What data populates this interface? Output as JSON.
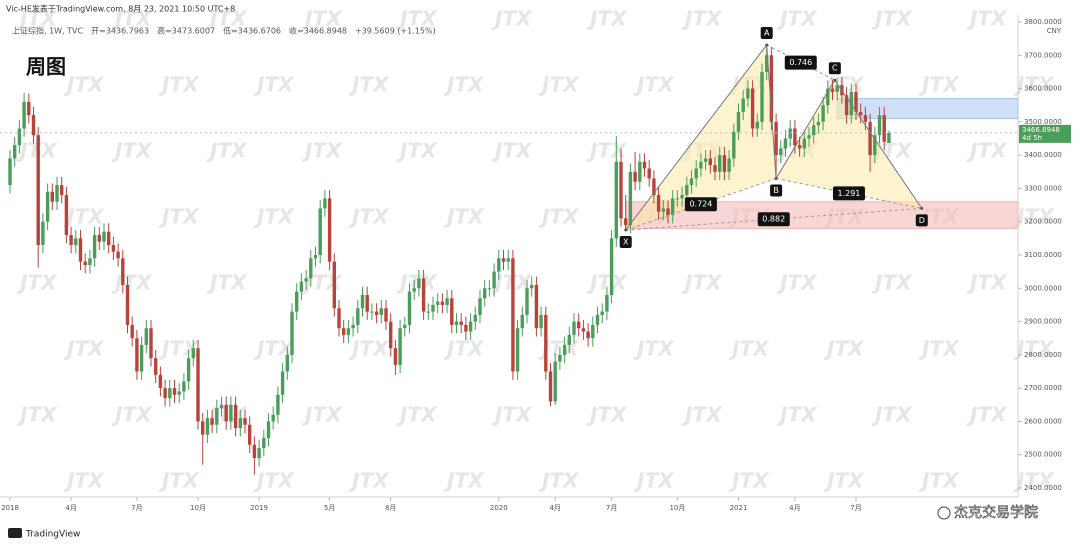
{
  "header": {
    "source": "Vic-HE发表于TradingView.com, 8月 23, 2021 10:50 UTC+8",
    "symbol": "上证综指, 1W, TVC",
    "fields": [
      "开=3436.7963",
      "高=3473.6007",
      "低=3436.6706",
      "收=3466.8948",
      "+39.5609 (+1.15%)"
    ],
    "period_label": "周图",
    "currency": "CNY",
    "brand": "TradingView",
    "credit": "杰克交易学院",
    "watermark": "JTX"
  },
  "chart_data": {
    "type": "candlestick",
    "up_color": "#4a9d5b",
    "down_color": "#b8433a",
    "ylim": [
      2379,
      3821
    ],
    "yticks": [
      {
        "value": 2400,
        "label": "2400.0000"
      },
      {
        "value": 2500,
        "label": "2500.0000"
      },
      {
        "value": 2600,
        "label": "2600.0000"
      },
      {
        "value": 2700,
        "label": "2700.0000"
      },
      {
        "value": 2800,
        "label": "2800.0000"
      },
      {
        "value": 2900,
        "label": "2900.0000"
      },
      {
        "value": 3000,
        "label": "3000.0000"
      },
      {
        "value": 3100,
        "label": "3100.0000"
      },
      {
        "value": 3200,
        "label": "3200.0000"
      },
      {
        "value": 3300,
        "label": "3300.0000"
      },
      {
        "value": 3400,
        "label": "3400.0000"
      },
      {
        "value": 3500,
        "label": "3500.0000"
      },
      {
        "value": 3600,
        "label": "3600.0000"
      },
      {
        "value": 3700,
        "label": "3700.0000"
      },
      {
        "value": 3800,
        "label": "3800.0000"
      }
    ],
    "categories": [
      "2018",
      null,
      null,
      null,
      null,
      null,
      null,
      null,
      null,
      null,
      null,
      null,
      null,
      "4月",
      null,
      null,
      null,
      null,
      null,
      null,
      null,
      null,
      null,
      null,
      null,
      null,
      null,
      "7月",
      null,
      null,
      null,
      null,
      null,
      null,
      null,
      null,
      null,
      null,
      null,
      null,
      "10月",
      null,
      null,
      null,
      null,
      null,
      null,
      null,
      null,
      null,
      null,
      null,
      null,
      "2019",
      null,
      null,
      null,
      null,
      null,
      null,
      null,
      null,
      null,
      null,
      null,
      null,
      null,
      null,
      "5月",
      null,
      null,
      null,
      null,
      null,
      null,
      null,
      null,
      null,
      null,
      null,
      null,
      "8月",
      null,
      null,
      null,
      null,
      null,
      null,
      null,
      null,
      null,
      null,
      null,
      null,
      null,
      null,
      null,
      null,
      null,
      null,
      null,
      null,
      null,
      null,
      "2020",
      null,
      null,
      null,
      null,
      null,
      null,
      null,
      null,
      null,
      null,
      null,
      "4月",
      null,
      null,
      null,
      null,
      null,
      null,
      null,
      null,
      null,
      null,
      null,
      "7月",
      null,
      null,
      null,
      null,
      null,
      null,
      null,
      null,
      null,
      null,
      null,
      null,
      null,
      "10月",
      null,
      null,
      null,
      null,
      null,
      null,
      null,
      null,
      null,
      null,
      null,
      null,
      "2021",
      null,
      null,
      null,
      null,
      null,
      null,
      null,
      null,
      null,
      null,
      null,
      "4月",
      null,
      null,
      null,
      null,
      null,
      null,
      null,
      null,
      null,
      null,
      null,
      null,
      "7月",
      null,
      null,
      null,
      null,
      null,
      null,
      null
    ],
    "open": [
      3310,
      3390,
      3430,
      3480,
      3560,
      3520,
      3460,
      3130,
      3200,
      3290,
      3260,
      3310,
      3280,
      3160,
      3130,
      3150,
      3080,
      3070,
      3090,
      3160,
      3140,
      3170,
      3130,
      3110,
      3090,
      3010,
      2890,
      2850,
      2750,
      2830,
      2880,
      2790,
      2740,
      2700,
      2670,
      2700,
      2680,
      2690,
      2720,
      2790,
      2820,
      2600,
      2560,
      2610,
      2590,
      2640,
      2650,
      2600,
      2650,
      2580,
      2610,
      2590,
      2530,
      2490,
      2520,
      2550,
      2600,
      2620,
      2680,
      2750,
      2800,
      2930,
      2990,
      3020,
      3030,
      3090,
      3100,
      3240,
      3270,
      3080,
      2940,
      2880,
      2860,
      2880,
      2890,
      2940,
      2980,
      2930,
      2930,
      2920,
      2940,
      2900,
      2820,
      2770,
      2880,
      2890,
      2990,
      3000,
      3030,
      2930,
      2930,
      2950,
      2960,
      2950,
      2970,
      2890,
      2900,
      2890,
      2870,
      2900,
      2920,
      2970,
      3000,
      3000,
      3050,
      3090,
      3080,
      3090,
      2750,
      2880,
      2920,
      3000,
      3010,
      2880,
      2920,
      2750,
      2660,
      2780,
      2800,
      2830,
      2860,
      2900,
      2880,
      2870,
      2850,
      2890,
      2920,
      2930,
      2980,
      3150,
      3380,
      3210,
      3190,
      3350,
      3320,
      3380,
      3360,
      3330,
      3280,
      3230,
      3240,
      3220,
      3270,
      3270,
      3280,
      3310,
      3330,
      3360,
      3380,
      3390,
      3370,
      3350,
      3400,
      3350,
      3390,
      3470,
      3530,
      3570,
      3600,
      3480,
      3500,
      3650,
      3700,
      3500,
      3400,
      3420,
      3450,
      3480,
      3430,
      3420,
      3450,
      3460,
      3490,
      3500,
      3550,
      3600,
      3590,
      3610,
      3580,
      3520,
      3590,
      3530,
      3520,
      3500,
      3400,
      3460,
      3520,
      3436.7963
    ],
    "high": [
      3415,
      3455,
      3505,
      3587,
      3585,
      3545,
      3485,
      3225,
      3315,
      3315,
      3335,
      3335,
      3305,
      3185,
      3175,
      3175,
      3105,
      3115,
      3185,
      3185,
      3195,
      3195,
      3155,
      3135,
      3115,
      3035,
      2915,
      2875,
      2855,
      2905,
      2905,
      2815,
      2765,
      2725,
      2725,
      2725,
      2715,
      2745,
      2815,
      2845,
      2845,
      2625,
      2635,
      2635,
      2665,
      2675,
      2675,
      2675,
      2675,
      2635,
      2635,
      2615,
      2555,
      2545,
      2575,
      2625,
      2645,
      2705,
      2775,
      2825,
      2955,
      3015,
      3045,
      3055,
      3115,
      3125,
      3265,
      3295,
      3295,
      3105,
      2965,
      2905,
      2905,
      2915,
      2965,
      3005,
      3005,
      2955,
      2955,
      2965,
      2965,
      2925,
      2845,
      2905,
      2915,
      3015,
      3025,
      3055,
      3055,
      2955,
      2975,
      2985,
      2985,
      2995,
      2995,
      2925,
      2925,
      2915,
      2925,
      2945,
      2995,
      3025,
      3025,
      3075,
      3115,
      3115,
      3115,
      3115,
      2905,
      2945,
      3025,
      3035,
      3035,
      2945,
      2945,
      2775,
      2805,
      2825,
      2855,
      2885,
      2925,
      2925,
      2905,
      2895,
      2915,
      2945,
      2955,
      3005,
      3175,
      3458,
      3420,
      3280,
      3375,
      3410,
      3405,
      3405,
      3385,
      3355,
      3305,
      3265,
      3265,
      3295,
      3295,
      3305,
      3335,
      3355,
      3385,
      3405,
      3415,
      3415,
      3395,
      3425,
      3425,
      3415,
      3495,
      3555,
      3595,
      3625,
      3625,
      3525,
      3675,
      3731,
      3725,
      3525,
      3445,
      3475,
      3505,
      3505,
      3455,
      3475,
      3485,
      3515,
      3525,
      3575,
      3625,
      3625,
      3630,
      3635,
      3605,
      3615,
      3615,
      3555,
      3545,
      3525,
      3485,
      3545,
      3545,
      3473.6007
    ],
    "low": [
      3285,
      3365,
      3405,
      3455,
      3495,
      3435,
      3062,
      3105,
      3175,
      3235,
      3235,
      3255,
      3135,
      3105,
      3105,
      3055,
      3045,
      3045,
      3065,
      3115,
      3115,
      3105,
      3085,
      3065,
      2985,
      2865,
      2825,
      2725,
      2725,
      2805,
      2765,
      2715,
      2675,
      2645,
      2645,
      2655,
      2655,
      2665,
      2695,
      2765,
      2575,
      2470,
      2535,
      2565,
      2565,
      2615,
      2575,
      2575,
      2555,
      2555,
      2565,
      2505,
      2440,
      2465,
      2495,
      2525,
      2575,
      2595,
      2655,
      2725,
      2775,
      2905,
      2965,
      2995,
      3005,
      3065,
      3075,
      3215,
      3055,
      2915,
      2855,
      2835,
      2835,
      2855,
      2865,
      2915,
      2905,
      2905,
      2895,
      2895,
      2875,
      2795,
      2740,
      2745,
      2855,
      2865,
      2965,
      2975,
      2905,
      2905,
      2905,
      2925,
      2925,
      2925,
      2865,
      2865,
      2865,
      2845,
      2845,
      2875,
      2895,
      2945,
      2975,
      2975,
      3025,
      3055,
      3055,
      2725,
      2725,
      2855,
      2895,
      2975,
      2855,
      2855,
      2725,
      2646,
      2650,
      2755,
      2775,
      2805,
      2835,
      2855,
      2845,
      2825,
      2825,
      2865,
      2895,
      2905,
      2955,
      3125,
      3185,
      3175,
      3165,
      3295,
      3295,
      3335,
      3305,
      3255,
      3205,
      3205,
      3195,
      3195,
      3245,
      3245,
      3255,
      3285,
      3305,
      3335,
      3355,
      3345,
      3325,
      3325,
      3325,
      3325,
      3365,
      3445,
      3505,
      3545,
      3455,
      3455,
      3475,
      3625,
      3475,
      3330,
      3375,
      3395,
      3425,
      3405,
      3395,
      3395,
      3425,
      3435,
      3465,
      3475,
      3525,
      3565,
      3565,
      3555,
      3495,
      3495,
      3505,
      3495,
      3475,
      3350,
      3375,
      3435,
      3415,
      3436.6706
    ],
    "close": [
      3390,
      3430,
      3480,
      3560,
      3520,
      3460,
      3130,
      3200,
      3290,
      3260,
      3310,
      3280,
      3160,
      3130,
      3150,
      3080,
      3070,
      3090,
      3160,
      3140,
      3170,
      3130,
      3110,
      3090,
      3010,
      2890,
      2850,
      2750,
      2830,
      2880,
      2790,
      2740,
      2700,
      2670,
      2700,
      2680,
      2690,
      2720,
      2790,
      2820,
      2600,
      2560,
      2610,
      2590,
      2640,
      2650,
      2600,
      2650,
      2580,
      2610,
      2590,
      2530,
      2490,
      2520,
      2550,
      2600,
      2620,
      2680,
      2750,
      2800,
      2930,
      2990,
      3020,
      3030,
      3090,
      3100,
      3240,
      3270,
      3080,
      2940,
      2880,
      2860,
      2880,
      2890,
      2940,
      2980,
      2930,
      2930,
      2920,
      2940,
      2900,
      2820,
      2770,
      2880,
      2890,
      2990,
      3000,
      3030,
      2930,
      2930,
      2950,
      2960,
      2950,
      2970,
      2890,
      2900,
      2890,
      2870,
      2900,
      2920,
      2970,
      3000,
      3000,
      3050,
      3090,
      3080,
      3090,
      2750,
      2880,
      2920,
      3000,
      3010,
      2880,
      2920,
      2750,
      2660,
      2780,
      2800,
      2830,
      2860,
      2900,
      2880,
      2870,
      2850,
      2890,
      2920,
      2930,
      2980,
      3150,
      3380,
      3210,
      3190,
      3350,
      3320,
      3380,
      3360,
      3330,
      3280,
      3230,
      3240,
      3220,
      3270,
      3270,
      3280,
      3310,
      3330,
      3360,
      3380,
      3390,
      3370,
      3350,
      3400,
      3350,
      3390,
      3470,
      3530,
      3570,
      3600,
      3480,
      3500,
      3650,
      3700,
      3500,
      3400,
      3420,
      3450,
      3480,
      3430,
      3420,
      3450,
      3460,
      3490,
      3500,
      3550,
      3600,
      3590,
      3610,
      3580,
      3520,
      3590,
      3530,
      3520,
      3500,
      3400,
      3460,
      3520,
      3440,
      3466.8948
    ],
    "countdown": "4d 5h",
    "zones": [
      {
        "start": 176,
        "from": 3510,
        "to": 3570,
        "color": "#a9c4ee"
      },
      {
        "start": 131,
        "from": 3180,
        "to": 3260,
        "color": "#f4b4b4"
      }
    ],
    "pattern": {
      "points": [
        {
          "label": "X",
          "x": 131,
          "y": 3175
        },
        {
          "label": "A",
          "x": 161,
          "y": 3731
        },
        {
          "label": "B",
          "x": 163,
          "y": 3330
        },
        {
          "label": "C",
          "x": 175.5,
          "y": 3625
        },
        {
          "label": "D",
          "x": 194,
          "y": 3240
        }
      ],
      "ratios": [
        0.746,
        0.724,
        1.291,
        0.882
      ]
    }
  }
}
